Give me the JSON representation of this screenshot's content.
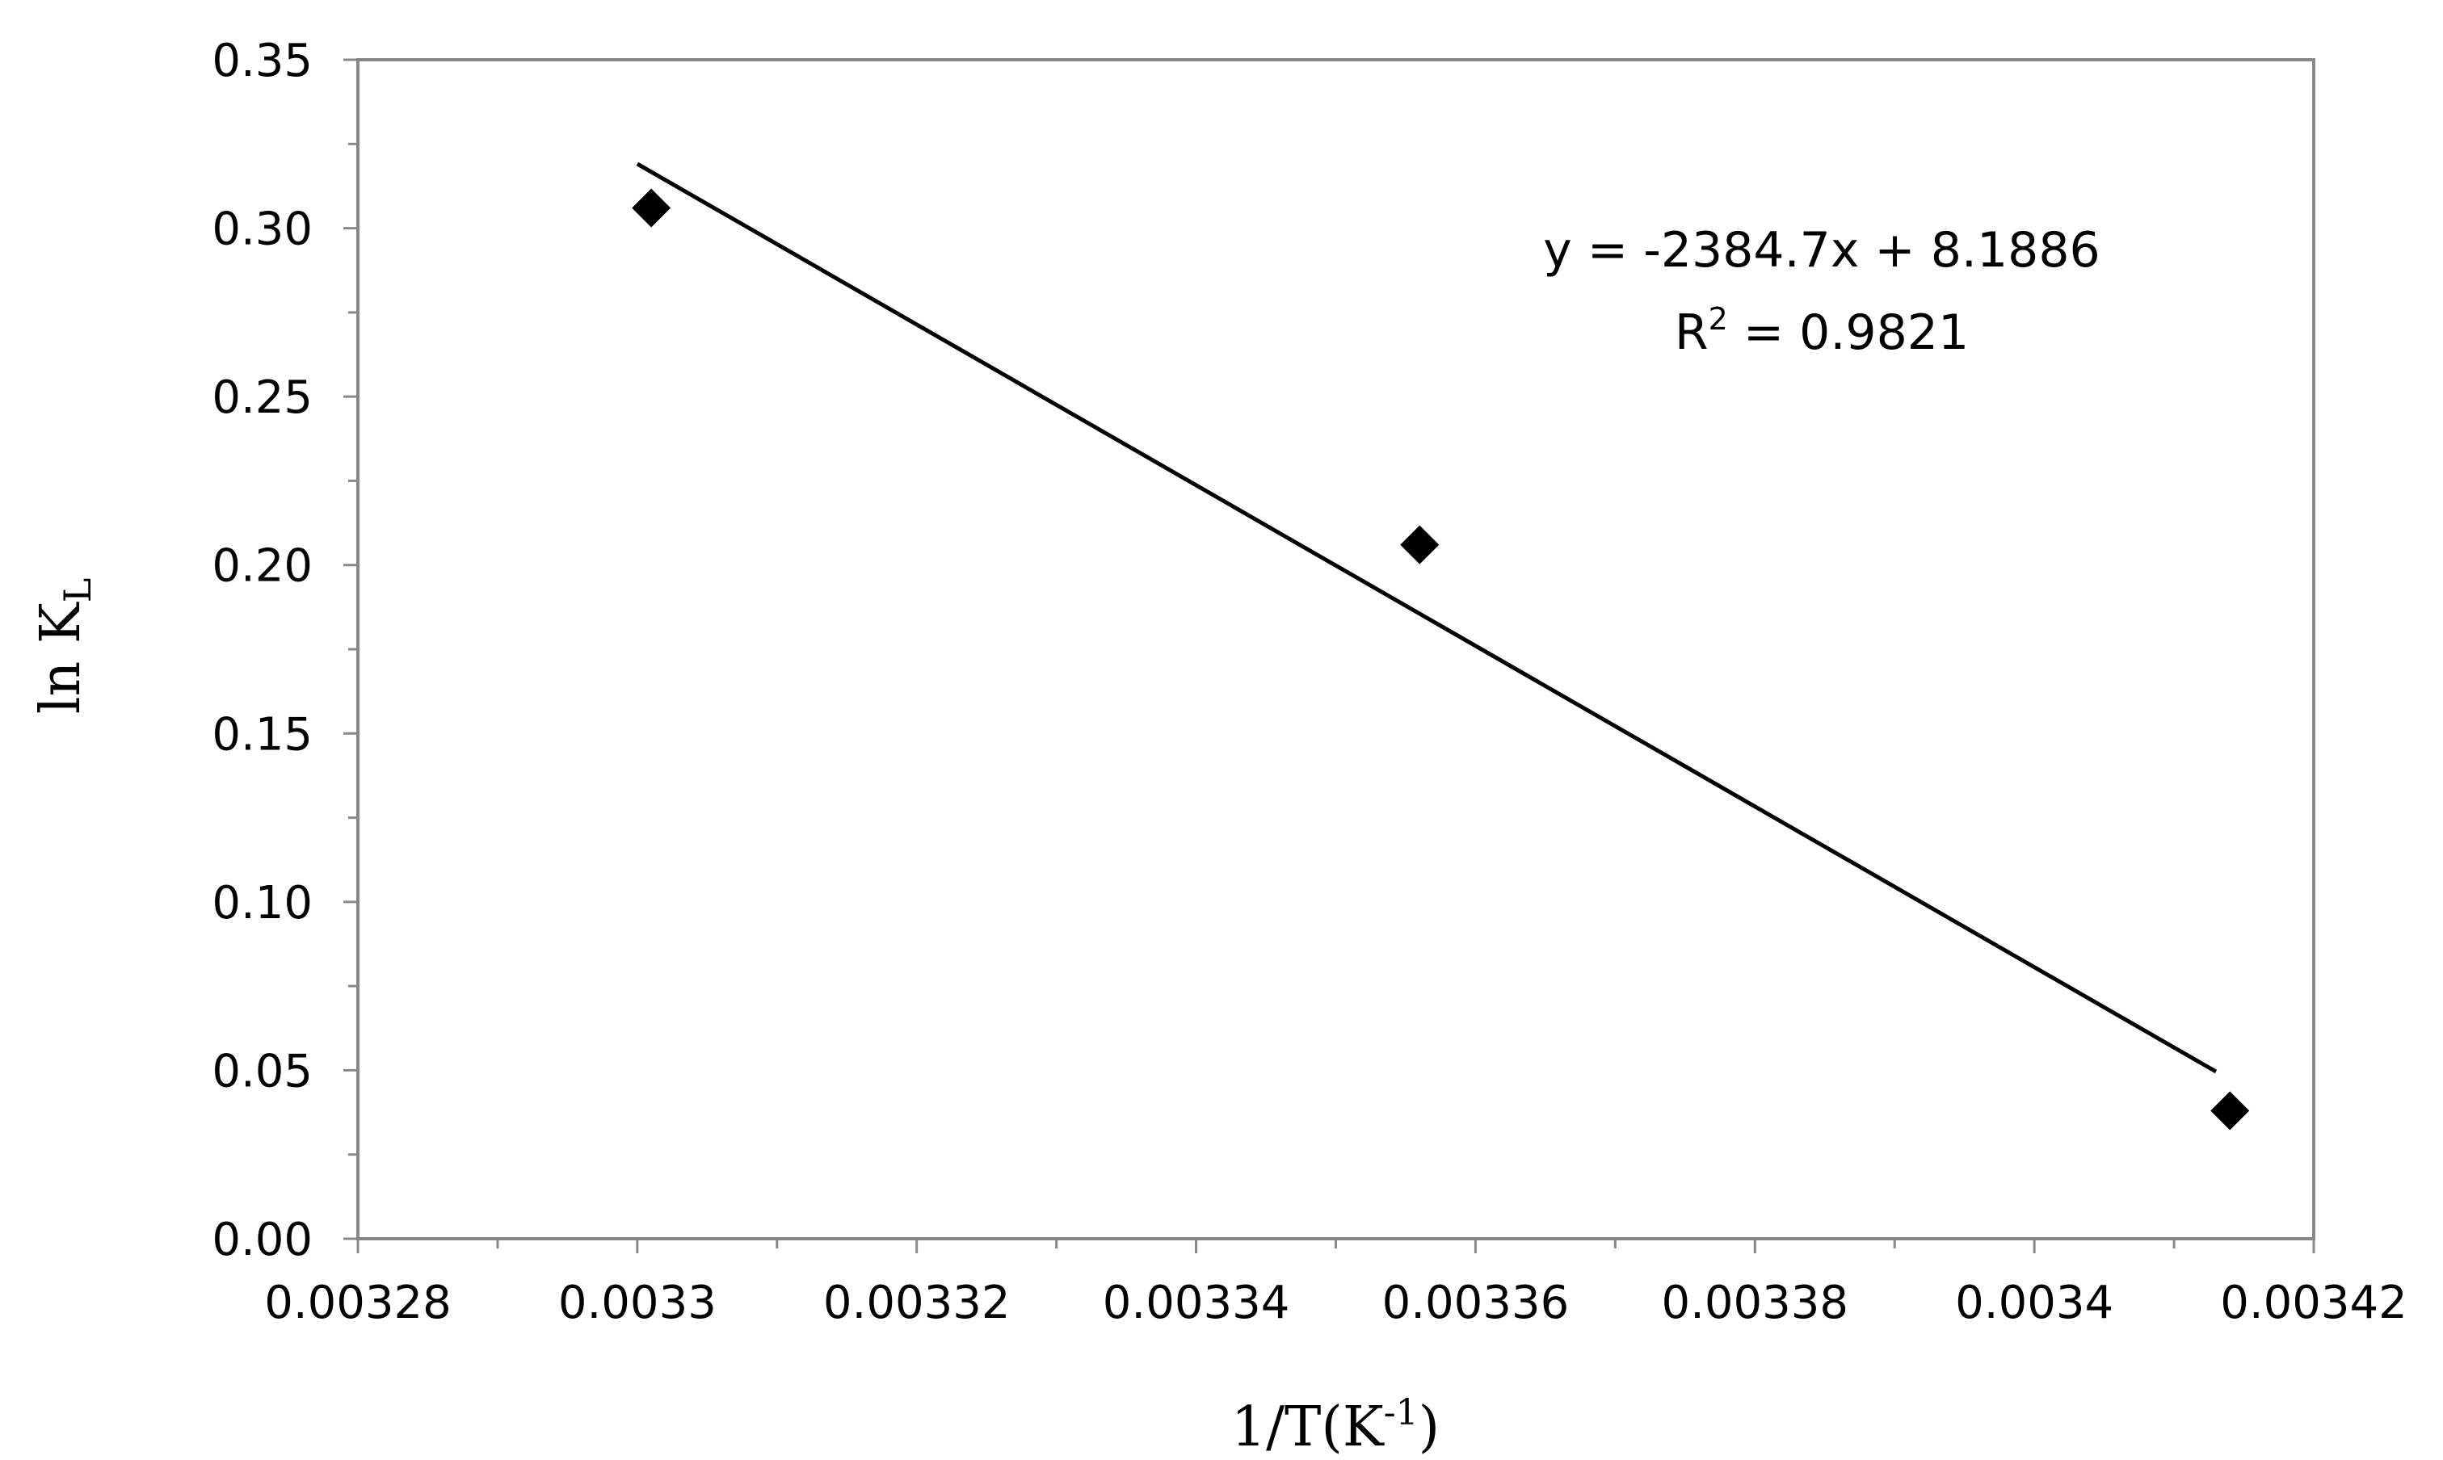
{
  "chart_data": {
    "type": "scatter",
    "xlabel": {
      "base": "1/T(K",
      "sup": "-1",
      "tail": ")"
    },
    "ylabel": {
      "base": "ln K",
      "sub": "L"
    },
    "xlim": [
      0.00328,
      0.00342
    ],
    "ylim": [
      0.0,
      0.35
    ],
    "x_ticks": [
      0.00328,
      0.0033,
      0.00332,
      0.00334,
      0.00336,
      0.00338,
      0.0034,
      0.00342
    ],
    "x_tick_labels": [
      "0.00328",
      "0.0033",
      "0.00332",
      "0.00334",
      "0.00336",
      "0.00338",
      "0.0034",
      "0.00342"
    ],
    "y_ticks": [
      0.0,
      0.05,
      0.1,
      0.15,
      0.2,
      0.25,
      0.3,
      0.35
    ],
    "y_tick_labels": [
      "0.00",
      "0.05",
      "0.10",
      "0.15",
      "0.20",
      "0.25",
      "0.30",
      "0.35"
    ],
    "grid": false,
    "legend": "none",
    "points": [
      {
        "x": 0.003301,
        "y": 0.306
      },
      {
        "x": 0.003356,
        "y": 0.206
      },
      {
        "x": 0.003414,
        "y": 0.038
      }
    ],
    "trendline": {
      "slope": -2384.7,
      "intercept": 8.1886,
      "x_start": 0.0033,
      "x_end": 0.003413
    },
    "equation_text": "y = -2384.7x + 8.1886",
    "r2_text": {
      "base": "R",
      "sup": "2",
      "tail": " = 0.9821"
    },
    "marker_color": "#000000",
    "line_color": "#000000"
  }
}
